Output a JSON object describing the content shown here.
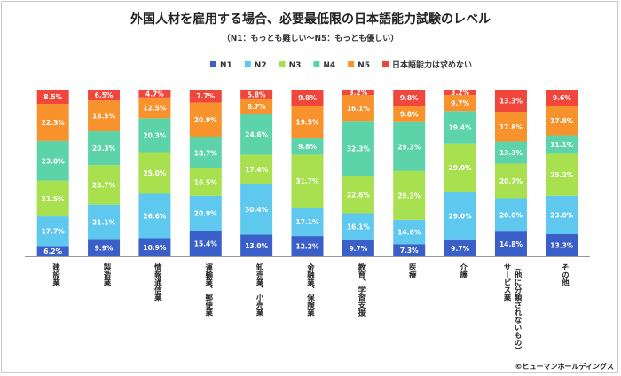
{
  "title": "外国人材を雇用する場合、必要最低限の日本語能力試験のレベル",
  "subtitle": "（N1：もっとも難しい～N5：もっとも優しい）",
  "copyright": "©ヒューマンホールディングス",
  "chart_data": {
    "type": "bar",
    "stacked": true,
    "percent_stacked": true,
    "legend_position": "top",
    "categories": [
      "建設業",
      "製造業",
      "情報通信業",
      "運輸業、郵便業",
      "卸売業、小売業",
      "金融業、保険業",
      "教育、学習支援",
      "医療",
      "介護",
      "サービス業（他に分類されないもの）",
      "その他"
    ],
    "series": [
      {
        "name": "N1",
        "color": "#3a5fc8",
        "values": [
          6.2,
          9.9,
          10.9,
          15.4,
          13.0,
          12.2,
          9.7,
          7.3,
          9.7,
          14.8,
          13.3
        ]
      },
      {
        "name": "N2",
        "color": "#5ec8ef",
        "values": [
          17.7,
          21.1,
          26.6,
          20.9,
          30.4,
          17.1,
          16.1,
          14.6,
          29.0,
          20.0,
          23.0
        ]
      },
      {
        "name": "N3",
        "color": "#a8e04f",
        "values": [
          21.5,
          23.7,
          25.0,
          16.5,
          17.4,
          31.7,
          22.6,
          29.3,
          29.0,
          20.7,
          25.2
        ]
      },
      {
        "name": "N4",
        "color": "#5cd3a8",
        "values": [
          23.8,
          20.3,
          20.3,
          18.7,
          24.6,
          9.8,
          32.3,
          29.3,
          19.4,
          13.3,
          11.1
        ]
      },
      {
        "name": "N5",
        "color": "#f7922c",
        "values": [
          22.3,
          18.5,
          12.5,
          20.9,
          8.7,
          19.5,
          16.1,
          9.8,
          9.7,
          17.8,
          17.8
        ]
      },
      {
        "name": "日本語能力は求めない",
        "color": "#f0463c",
        "values": [
          8.5,
          6.5,
          4.7,
          7.7,
          5.8,
          9.8,
          3.2,
          9.8,
          3.2,
          13.3,
          9.6
        ]
      }
    ],
    "value_labels": [
      [
        "6.2%",
        "9.9%",
        "10.9%",
        "15.4%",
        "13.0%",
        "12.2%",
        "9.7%",
        "7.3%",
        "9.7%",
        "14.8%",
        "13.3%"
      ],
      [
        "17.7%",
        "21.1%",
        "26.6%",
        "20.9%",
        "30.4%",
        "17.1%",
        "16.1%",
        "14.6%",
        "29.0%",
        "20.0%",
        "23.0%"
      ],
      [
        "21.5%",
        "23.7%",
        "25.0%",
        "16.5%",
        "17.4%",
        "31.7%",
        "22.6%",
        "29.3%",
        "29.0%",
        "20.7%",
        "25.2%"
      ],
      [
        "23.8%",
        "20.3%",
        "20.3%",
        "18.7%",
        "24.6%",
        "9.8%",
        "32.3%",
        "29.3%",
        "19.4%",
        "13.3%",
        "11.1%"
      ],
      [
        "22.3%",
        "18.5%",
        "12.5%",
        "20.9%",
        "8.7%",
        "19.5%",
        "16.1%",
        "9.8%",
        "9.7%",
        "17.8%",
        "17.8%"
      ],
      [
        "8.5%",
        "6.5%",
        "4.7%",
        "7.7%",
        "5.8%",
        "9.8%",
        "3.2%",
        "9.8%",
        "3.2%",
        "13.3%",
        "9.6%"
      ]
    ]
  }
}
